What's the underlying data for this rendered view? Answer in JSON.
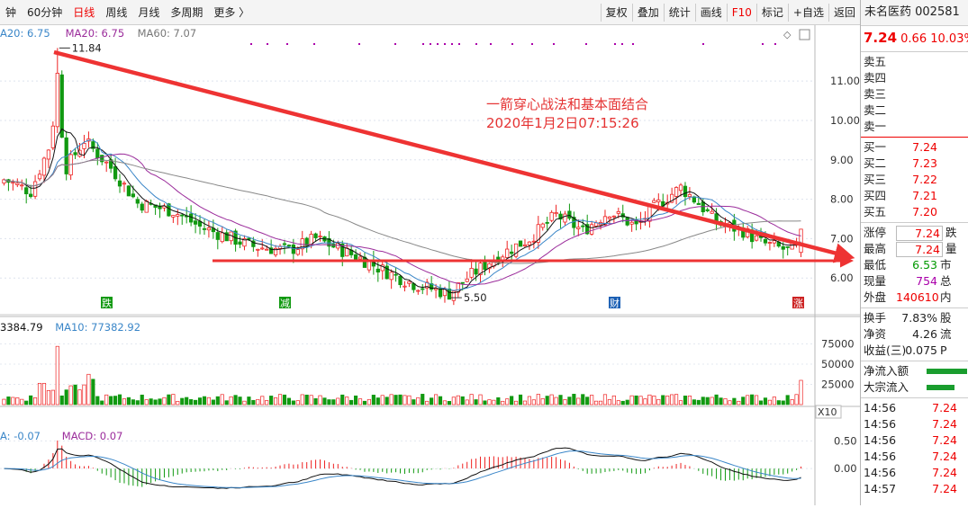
{
  "toolbar": {
    "left_tabs": [
      "钟",
      "60分钟",
      "日线",
      "周线",
      "月线",
      "多周期",
      "更多 〉"
    ],
    "active_tab": "日线",
    "right_buttons": [
      "复权",
      "叠加",
      "统计",
      "画线",
      "F10",
      "标记",
      "+自选",
      "返回"
    ]
  },
  "colors": {
    "up": "#ee2222",
    "down": "#119911",
    "ma5": "#111111",
    "ma10": "#3a86c8",
    "ma20": "#9b2c9b",
    "ma60": "#888888",
    "arrow": "#ee3333"
  },
  "price_panel": {
    "ma_legend": [
      {
        "text": "A20: 6.75",
        "color": "#3a86c8"
      },
      {
        "text": "MA20: 6.75",
        "color": "#9b2c9b"
      },
      {
        "text": "MA60: 7.07",
        "color": "#777777"
      }
    ],
    "y_ticks": [
      "11.00",
      "10.00",
      "9.00",
      "8.00",
      "7.00",
      "6.00"
    ],
    "high_label": "11.84",
    "low_label": "5.50",
    "annotation_line1": "一箭穿心战法和基本面结合",
    "annotation_line2": "2020年1月2日07:15:26",
    "markers": [
      {
        "text": "跌",
        "color": "#119911"
      },
      {
        "text": "减",
        "color": "#119911"
      },
      {
        "text": "财",
        "color": "#1a5fb4"
      },
      {
        "text": "涨",
        "color": "#cc2222"
      }
    ]
  },
  "volume_panel": {
    "legend": [
      {
        "text": "3384.79",
        "color": "#111111"
      },
      {
        "text": "MA10: 77382.92",
        "color": "#3a86c8"
      }
    ],
    "y_ticks": [
      "75000",
      "50000",
      "25000"
    ],
    "unit": "X10"
  },
  "macd_panel": {
    "legend": [
      {
        "text": "A: -0.07",
        "color": "#3a86c8"
      },
      {
        "text": "MACD: 0.07",
        "color": "#9b2c9b"
      }
    ],
    "y_ticks": [
      "0.50",
      "0.00"
    ]
  },
  "quote": {
    "name": "未名医药 002581",
    "price": "7.24",
    "change": "0.66",
    "pct": "10.03%",
    "sell": [
      "卖五",
      "卖四",
      "卖三",
      "卖二",
      "卖一"
    ],
    "buy": [
      {
        "label": "买一",
        "value": "7.24"
      },
      {
        "label": "买二",
        "value": "7.23"
      },
      {
        "label": "买三",
        "value": "7.22"
      },
      {
        "label": "买四",
        "value": "7.21"
      },
      {
        "label": "买五",
        "value": "7.20"
      }
    ],
    "stats": [
      {
        "label": "涨停",
        "value": "7.24",
        "ext": "跌",
        "color": "red",
        "boxed": true
      },
      {
        "label": "最高",
        "value": "7.24",
        "ext": "量",
        "color": "red",
        "boxed": true
      },
      {
        "label": "最低",
        "value": "6.53",
        "ext": "市",
        "color": "green",
        "boxed": false
      },
      {
        "label": "现量",
        "value": "754",
        "ext": "总",
        "color": "purple",
        "boxed": false
      },
      {
        "label": "外盘",
        "value": "140610",
        "ext": "内",
        "color": "red",
        "boxed": false
      }
    ],
    "stats2": [
      {
        "label": "换手",
        "value": "7.83%",
        "ext": "股"
      },
      {
        "label": "净资",
        "value": "4.26",
        "ext": "流"
      },
      {
        "label": "收益(三)",
        "value": "0.075",
        "ext": "P"
      }
    ],
    "flows": [
      {
        "label": "净流入额",
        "bar": 0.5
      },
      {
        "label": "大宗流入",
        "bar": 0.35
      }
    ],
    "ticks": [
      {
        "time": "14:56",
        "price": "7.24"
      },
      {
        "time": "14:56",
        "price": "7.24"
      },
      {
        "time": "14:56",
        "price": "7.24"
      },
      {
        "time": "14:56",
        "price": "7.24"
      },
      {
        "time": "14:56",
        "price": "7.24"
      },
      {
        "time": "14:57",
        "price": "7.24"
      }
    ]
  }
}
